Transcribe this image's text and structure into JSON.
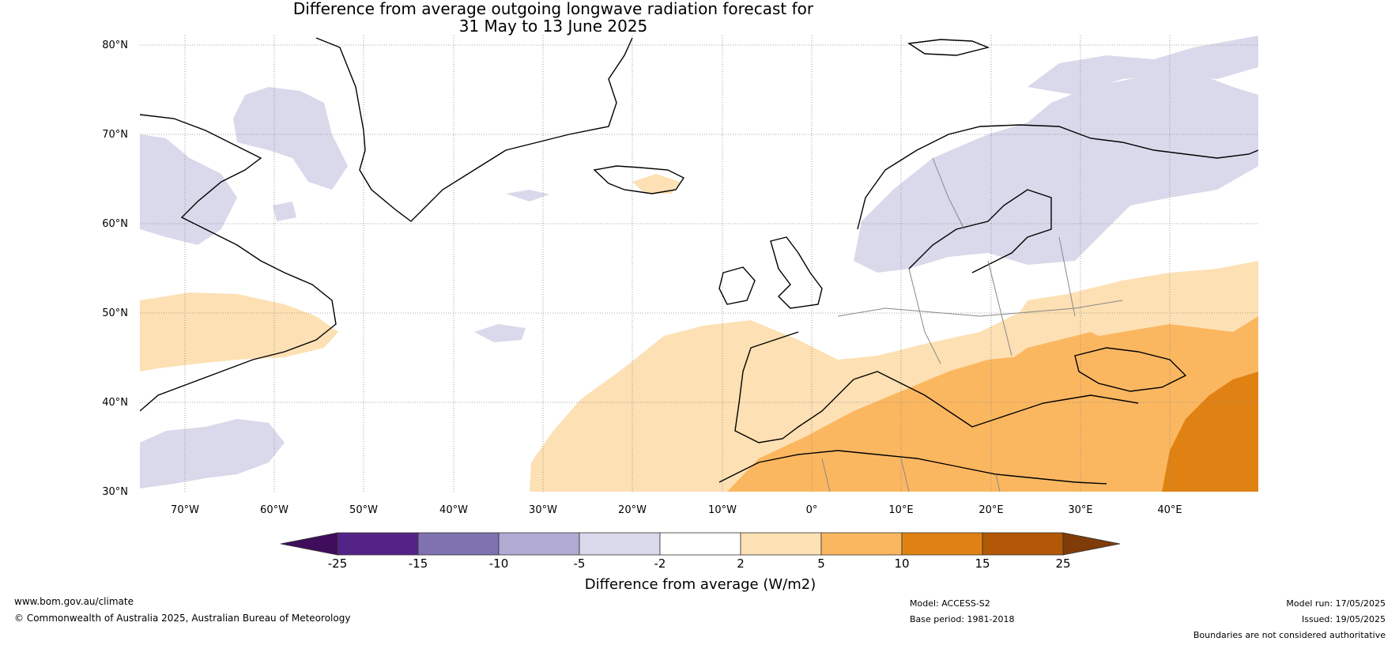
{
  "title": {
    "line1": "Difference from average outgoing longwave radiation forecast for",
    "line2": "31 May to 13 June 2025"
  },
  "map": {
    "lat_labels": [
      "80°N",
      "70°N",
      "60°N",
      "50°N",
      "40°N",
      "30°N"
    ],
    "lon_labels": [
      "70°W",
      "60°W",
      "50°W",
      "40°W",
      "30°W",
      "20°W",
      "10°W",
      "0°",
      "10°E",
      "20°E",
      "30°E",
      "40°E"
    ],
    "extent": {
      "lon": [
        -75,
        50
      ],
      "lat": [
        30,
        81
      ]
    },
    "gridlines": "dotted"
  },
  "colorbar": {
    "label": "Difference from average (W/m2)",
    "ticks": [
      "-25",
      "-15",
      "-10",
      "-5",
      "-2",
      "2",
      "5",
      "10",
      "15",
      "25"
    ],
    "colors": [
      "#3f0d5c",
      "#542387",
      "#7f72b0",
      "#b1aad3",
      "#d9d9eb",
      "#ffffff",
      "#fde0b3",
      "#fbb760",
      "#e08213",
      "#b35806",
      "#7f3b08"
    ],
    "extend": "both"
  },
  "footer": {
    "website": "www.bom.gov.au/climate",
    "copyright": "© Commonwealth of Australia 2025, Australian Bureau of Meteorology",
    "model": "Model: ACCESS-S2",
    "base_period": "Base period: 1981-2018",
    "model_run": "Model run: 17/05/2025",
    "issued": "Issued: 19/05/2025",
    "disclaimer": "Boundaries are not considered authoritative"
  }
}
